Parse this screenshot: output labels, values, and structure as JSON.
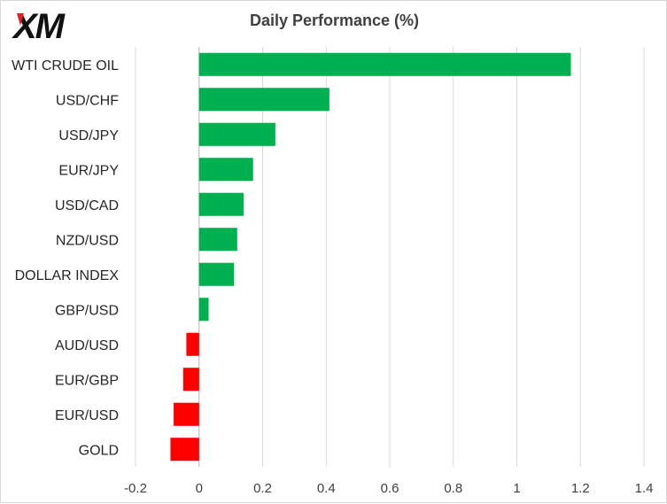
{
  "brand": {
    "logo_text": "XM"
  },
  "chart_data": {
    "type": "bar",
    "orientation": "horizontal",
    "title": "Daily Performance (%)",
    "categories": [
      "WTI CRUDE OIL",
      "USD/CHF",
      "USD/JPY",
      "EUR/JPY",
      "USD/CAD",
      "NZD/USD",
      "DOLLAR INDEX",
      "GBP/USD",
      "AUD/USD",
      "EUR/GBP",
      "EUR/USD",
      "GOLD"
    ],
    "values": [
      1.17,
      0.41,
      0.24,
      0.17,
      0.14,
      0.12,
      0.11,
      0.03,
      -0.04,
      -0.05,
      -0.08,
      -0.09
    ],
    "xlim": [
      -0.2,
      1.4
    ],
    "xticks": [
      -0.2,
      0,
      0.2,
      0.4,
      0.6,
      0.8,
      1,
      1.2,
      1.4
    ],
    "grid": "vertical",
    "colors": {
      "positive": "#00b050",
      "negative": "#ff0000",
      "grid": "#d9d9d9",
      "axis": "#bfbfbf"
    }
  }
}
